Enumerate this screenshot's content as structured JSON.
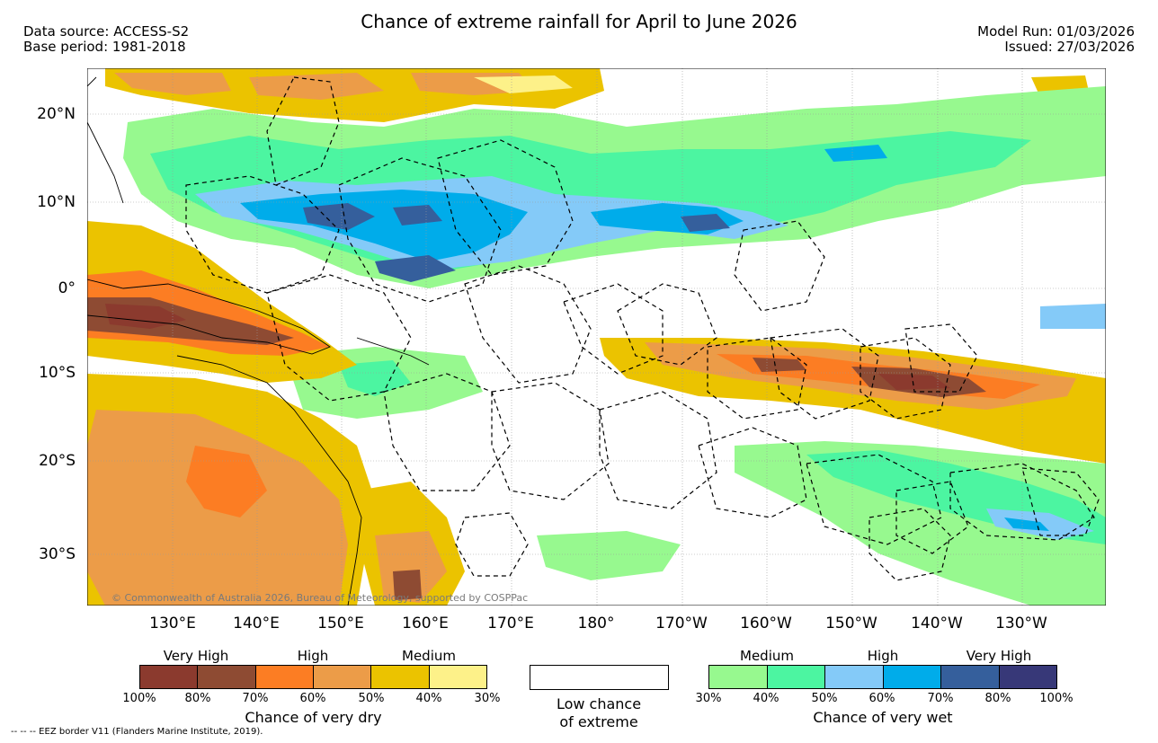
{
  "header": {
    "title": "Chance of extreme rainfall for April to June 2026",
    "data_source": "Data source: ACCESS-S2",
    "base_period": "Base period: 1981-2018",
    "model_run": "Model Run: 01/03/2026",
    "issued": "Issued: 27/03/2026"
  },
  "map": {
    "lat_labels": [
      "20°N",
      "10°N",
      "0°",
      "10°S",
      "20°S",
      "30°S"
    ],
    "lon_labels": [
      "130°E",
      "140°E",
      "150°E",
      "160°E",
      "170°E",
      "180°",
      "170°W",
      "160°W",
      "150°W",
      "140°W",
      "130°W"
    ],
    "copyright": "© Commonwealth of Australia 2026, Bureau of Meteorology, supported by COSPPac"
  },
  "legend_dry": {
    "headings": [
      "Very High",
      "High",
      "Medium"
    ],
    "colors": [
      "#8b3a2e",
      "#8e4b33",
      "#fc7d23",
      "#ec9c48",
      "#ebc300",
      "#fdf189"
    ],
    "ticks": [
      "100%",
      "80%",
      "70%",
      "60%",
      "50%",
      "40%",
      "30%"
    ],
    "caption": "Chance of very dry"
  },
  "legend_low": {
    "line1": "Low chance",
    "line2": "of extreme"
  },
  "legend_wet": {
    "headings": [
      "Medium",
      "High",
      "Very High"
    ],
    "colors": [
      "#97f98f",
      "#4cf5a1",
      "#84caf8",
      "#00acea",
      "#355f9c",
      "#373878"
    ],
    "ticks": [
      "30%",
      "40%",
      "50%",
      "60%",
      "70%",
      "80%",
      "100%"
    ],
    "caption": "Chance of very wet"
  },
  "footnote": "--  --  -- EEZ border V11 (Flanders Marine Institute, 2019)."
}
